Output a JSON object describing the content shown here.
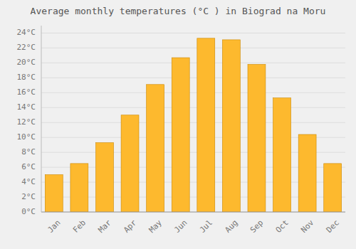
{
  "chart_data": {
    "type": "bar",
    "title": "Average monthly temperatures (°C ) in Biograd na Moru",
    "categories": [
      "Jan",
      "Feb",
      "Mar",
      "Apr",
      "May",
      "Jun",
      "Jul",
      "Aug",
      "Sep",
      "Oct",
      "Nov",
      "Dec"
    ],
    "values": [
      5.0,
      6.5,
      9.3,
      13.0,
      17.1,
      20.7,
      23.3,
      23.1,
      19.8,
      15.3,
      10.4,
      6.5
    ],
    "color": "#FDB92E",
    "ylim": [
      0,
      25
    ],
    "yticks": [
      {
        "value": 0,
        "label": "0°C"
      },
      {
        "value": 2,
        "label": "2°C"
      },
      {
        "value": 4,
        "label": "4°C"
      },
      {
        "value": 6,
        "label": "6°C"
      },
      {
        "value": 8,
        "label": "8°C"
      },
      {
        "value": 10,
        "label": "10°C"
      },
      {
        "value": 12,
        "label": "12°C"
      },
      {
        "value": 14,
        "label": "14°C"
      },
      {
        "value": 16,
        "label": "16°C"
      },
      {
        "value": 18,
        "label": "18°C"
      },
      {
        "value": 20,
        "label": "20°C"
      },
      {
        "value": 22,
        "label": "22°C"
      },
      {
        "value": 24,
        "label": "24°C"
      }
    ],
    "grid": true
  }
}
